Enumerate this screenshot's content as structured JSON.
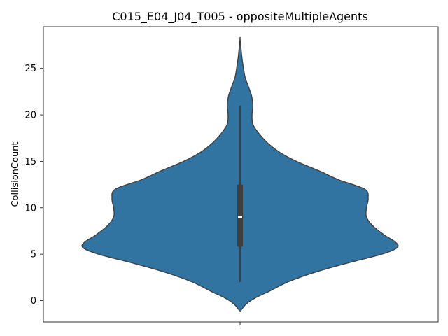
{
  "chart_data": {
    "type": "violin",
    "title": "C015_E04_J04_T005 - oppositeMultipleAgents",
    "xlabel": "",
    "ylabel": "CollisionCount",
    "ylim": [
      -2.3,
      29.5
    ],
    "yticks": [
      0,
      5,
      10,
      15,
      20,
      25
    ],
    "grid": false,
    "legend": "none",
    "colors": {
      "fill": "#3274a1",
      "edge": "#3f3f3f",
      "box": "#3f3f3f",
      "median": "#ffffff"
    },
    "violin": {
      "density_profile": [
        {
          "y": -1.2,
          "halfwidth": 0.0
        },
        {
          "y": -0.8,
          "halfwidth": 0.015
        },
        {
          "y": -0.3,
          "halfwidth": 0.04
        },
        {
          "y": 0.3,
          "halfwidth": 0.09
        },
        {
          "y": 1.0,
          "halfwidth": 0.17
        },
        {
          "y": 2.0,
          "halfwidth": 0.28
        },
        {
          "y": 3.0,
          "halfwidth": 0.43
        },
        {
          "y": 4.0,
          "halfwidth": 0.62
        },
        {
          "y": 5.0,
          "halfwidth": 0.83
        },
        {
          "y": 5.7,
          "halfwidth": 0.92
        },
        {
          "y": 6.3,
          "halfwidth": 0.91
        },
        {
          "y": 7.0,
          "halfwidth": 0.85
        },
        {
          "y": 8.0,
          "halfwidth": 0.78
        },
        {
          "y": 9.0,
          "halfwidth": 0.74
        },
        {
          "y": 10.0,
          "halfwidth": 0.74
        },
        {
          "y": 11.0,
          "halfwidth": 0.75
        },
        {
          "y": 12.0,
          "halfwidth": 0.73
        },
        {
          "y": 13.0,
          "halfwidth": 0.58
        },
        {
          "y": 14.0,
          "halfwidth": 0.46
        },
        {
          "y": 15.0,
          "halfwidth": 0.33
        },
        {
          "y": 16.0,
          "halfwidth": 0.23
        },
        {
          "y": 17.0,
          "halfwidth": 0.16
        },
        {
          "y": 18.0,
          "halfwidth": 0.11
        },
        {
          "y": 19.0,
          "halfwidth": 0.075
        },
        {
          "y": 20.0,
          "halfwidth": 0.07
        },
        {
          "y": 21.0,
          "halfwidth": 0.075
        },
        {
          "y": 22.0,
          "halfwidth": 0.068
        },
        {
          "y": 23.0,
          "halfwidth": 0.05
        },
        {
          "y": 24.0,
          "halfwidth": 0.03
        },
        {
          "y": 25.0,
          "halfwidth": 0.02
        },
        {
          "y": 26.0,
          "halfwidth": 0.012
        },
        {
          "y": 27.0,
          "halfwidth": 0.006
        },
        {
          "y": 28.2,
          "halfwidth": 0.0
        }
      ],
      "whisker_low": 2,
      "q1": 5.8,
      "median": 9,
      "q3": 12.5,
      "whisker_high": 21
    }
  }
}
